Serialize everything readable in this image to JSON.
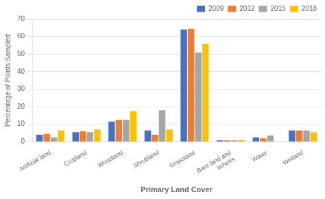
{
  "chart_data": {
    "type": "bar",
    "categories": [
      "Artificial land",
      "Cropland",
      "Woodland",
      "Shrubland",
      "Grassland",
      "Bare land and\nlichens",
      "Water",
      "Wetland"
    ],
    "series": [
      {
        "name": "2009",
        "color": "#4472C4",
        "values": [
          4.0,
          5.5,
          11.5,
          6.5,
          64.0,
          0.8,
          2.5,
          6.5
        ]
      },
      {
        "name": "2012",
        "color": "#ED7D31",
        "values": [
          4.5,
          6.0,
          12.5,
          4.0,
          64.5,
          0.8,
          2.0,
          6.5
        ]
      },
      {
        "name": "2015",
        "color": "#A5A5A5",
        "values": [
          2.5,
          5.5,
          12.5,
          18.0,
          51.0,
          0.8,
          3.5,
          6.5
        ]
      },
      {
        "name": "2018",
        "color": "#FFC000",
        "values": [
          6.5,
          7.0,
          17.5,
          7.0,
          56.0,
          1.0,
          0.2,
          5.5
        ]
      }
    ],
    "xlabel": "Primary Land Cover",
    "ylabel": "Percentage of Points Sampled",
    "ylim": [
      0,
      70
    ],
    "yticks": [
      0,
      10,
      20,
      30,
      40,
      50,
      60,
      70
    ],
    "grid": true,
    "legend": "upper right"
  }
}
